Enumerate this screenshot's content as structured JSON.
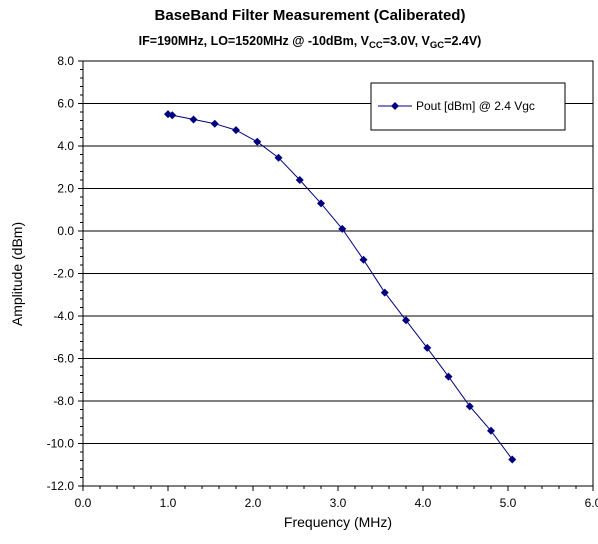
{
  "chart_data": {
    "type": "line",
    "title": "BaseBand Filter Measurement (Caliberated)",
    "subtitle": {
      "prefix": "IF=190MHz, LO=1520MHz @ -10dBm, V",
      "vcc_sub": "CC",
      "vcc_value": "=3.0V, V",
      "vgc_sub": "GC",
      "vgc_value": "=2.4V)"
    },
    "xlabel": "Frequency (MHz)",
    "ylabel": "Amplitude (dBm)",
    "xlim": [
      0,
      6
    ],
    "ylim": [
      -12,
      8
    ],
    "x_ticks": [
      "0.0",
      "1.0",
      "2.0",
      "3.0",
      "4.0",
      "5.0",
      "6.0"
    ],
    "y_ticks": [
      "8.0",
      "6.0",
      "4.0",
      "2.0",
      "0.0",
      "-2.0",
      "-4.0",
      "-6.0",
      "-8.0",
      "-10.0",
      "-12.0"
    ],
    "grid": "horizontal",
    "legend_position": "top-right",
    "series": [
      {
        "name": "Pout [dBm] @ 2.4 Vgc",
        "color": "#000080",
        "marker": "diamond",
        "x": [
          1.0,
          1.05,
          1.3,
          1.55,
          1.8,
          2.05,
          2.3,
          2.55,
          2.8,
          3.05,
          3.3,
          3.55,
          3.8,
          4.05,
          4.3,
          4.55,
          4.8,
          5.05
        ],
        "y": [
          5.5,
          5.45,
          5.25,
          5.05,
          4.75,
          4.2,
          3.45,
          2.4,
          1.3,
          0.1,
          -1.35,
          -2.9,
          -4.2,
          -5.5,
          -6.85,
          -8.25,
          -9.4,
          -10.75
        ]
      }
    ]
  }
}
